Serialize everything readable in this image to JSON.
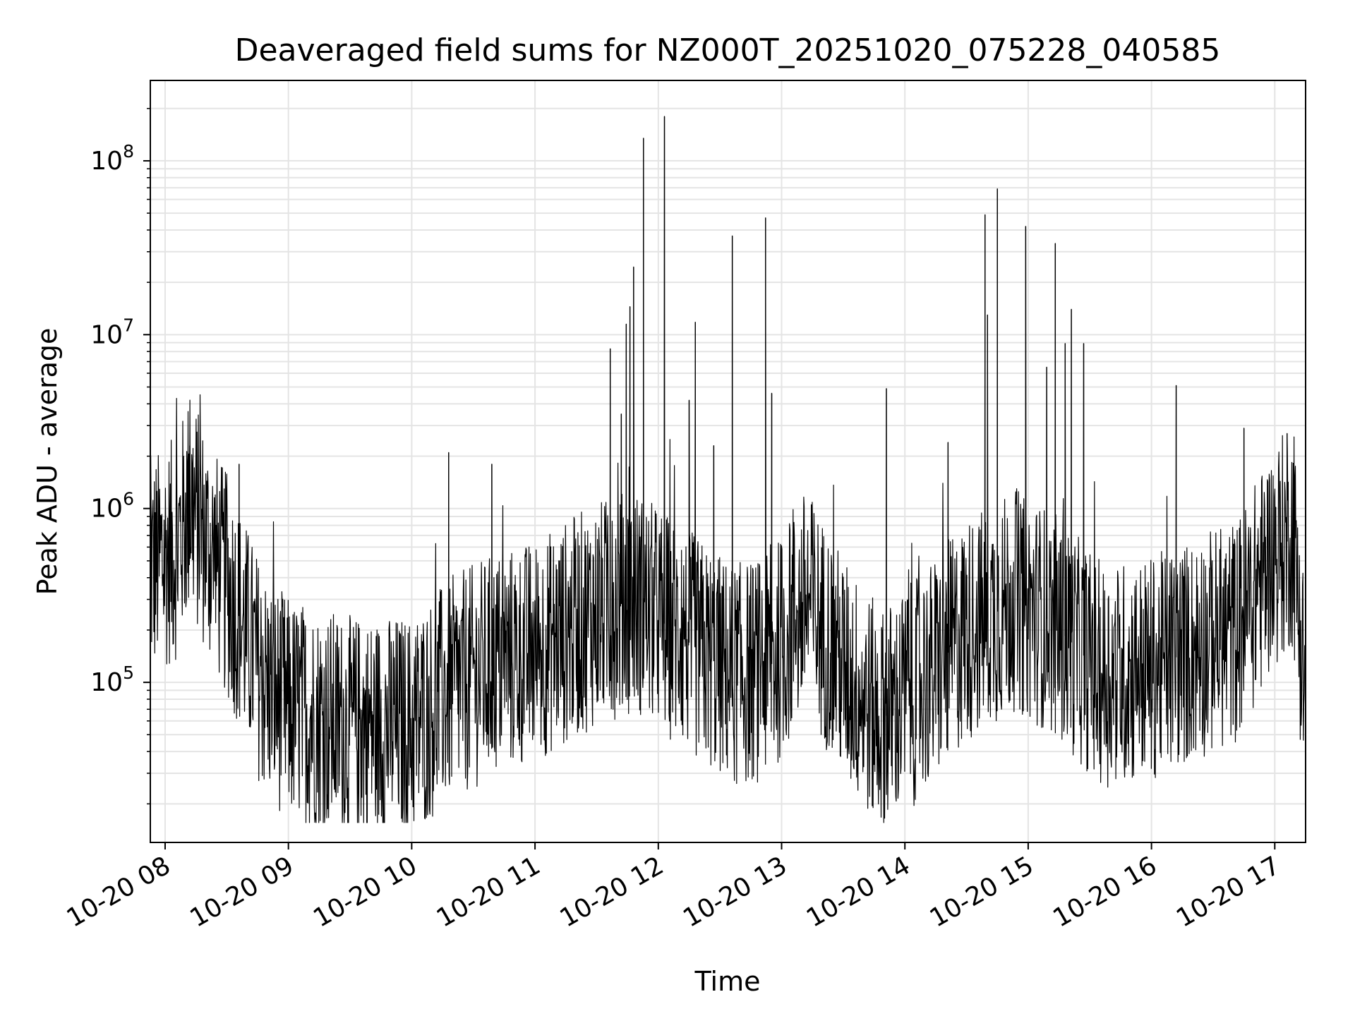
{
  "chart_data": {
    "type": "line",
    "title": "Deaveraged field sums for NZ000T_20251020_075228_040585",
    "xlabel": "Time",
    "ylabel": "Peak ADU - average",
    "y_scale": "log",
    "y_range": [
      12000,
      290000000
    ],
    "x_range_hours": [
      7.88,
      17.25
    ],
    "x_ticks": [
      {
        "hour": 8,
        "label": "10-20 08"
      },
      {
        "hour": 9,
        "label": "10-20 09"
      },
      {
        "hour": 10,
        "label": "10-20 10"
      },
      {
        "hour": 11,
        "label": "10-20 11"
      },
      {
        "hour": 12,
        "label": "10-20 12"
      },
      {
        "hour": 13,
        "label": "10-20 13"
      },
      {
        "hour": 14,
        "label": "10-20 14"
      },
      {
        "hour": 15,
        "label": "10-20 15"
      },
      {
        "hour": 16,
        "label": "10-20 16"
      },
      {
        "hour": 17,
        "label": "10-20 17"
      }
    ],
    "y_ticks": [
      {
        "value": 100000,
        "base": "10",
        "exp": "5"
      },
      {
        "value": 1000000,
        "base": "10",
        "exp": "6"
      },
      {
        "value": 10000000,
        "base": "10",
        "exp": "7"
      },
      {
        "value": 100000000,
        "base": "10",
        "exp": "8"
      }
    ],
    "grid": true,
    "series": [
      {
        "name": "Peak ADU - average",
        "color": "#000000",
        "baseline_profile": [
          [
            7.88,
            450000
          ],
          [
            8.1,
            600000
          ],
          [
            8.2,
            1100000
          ],
          [
            8.35,
            600000
          ],
          [
            8.55,
            300000
          ],
          [
            8.8,
            100000
          ],
          [
            9.0,
            70000
          ],
          [
            9.5,
            55000
          ],
          [
            10.0,
            55000
          ],
          [
            10.3,
            90000
          ],
          [
            10.7,
            130000
          ],
          [
            11.0,
            150000
          ],
          [
            11.5,
            250000
          ],
          [
            11.8,
            300000
          ],
          [
            12.2,
            180000
          ],
          [
            12.6,
            110000
          ],
          [
            12.9,
            120000
          ],
          [
            13.2,
            300000
          ],
          [
            13.5,
            120000
          ],
          [
            13.8,
            60000
          ],
          [
            14.1,
            90000
          ],
          [
            14.5,
            200000
          ],
          [
            14.9,
            300000
          ],
          [
            15.2,
            220000
          ],
          [
            15.6,
            110000
          ],
          [
            16.0,
            120000
          ],
          [
            16.3,
            150000
          ],
          [
            16.7,
            200000
          ],
          [
            17.0,
            550000
          ],
          [
            17.15,
            700000
          ],
          [
            17.25,
            80000
          ]
        ],
        "spikes": [
          [
            11.61,
            8300000
          ],
          [
            11.7,
            3500000
          ],
          [
            11.74,
            11500000
          ],
          [
            11.77,
            14500000
          ],
          [
            11.8,
            24500000
          ],
          [
            11.88,
            135000000
          ],
          [
            12.05,
            180000000
          ],
          [
            12.25,
            4200000
          ],
          [
            12.3,
            11800000
          ],
          [
            12.45,
            2300000
          ],
          [
            12.6,
            37000000
          ],
          [
            12.87,
            47000000
          ],
          [
            12.92,
            4600000
          ],
          [
            13.85,
            4900000
          ],
          [
            14.35,
            2400000
          ],
          [
            14.65,
            49000000
          ],
          [
            14.67,
            13000000
          ],
          [
            14.75,
            69000000
          ],
          [
            14.98,
            42000000
          ],
          [
            15.15,
            6500000
          ],
          [
            15.22,
            33500000
          ],
          [
            15.3,
            8900000
          ],
          [
            15.35,
            14000000
          ],
          [
            15.45,
            8900000
          ],
          [
            16.2,
            5100000
          ],
          [
            16.75,
            2900000
          ],
          [
            17.1,
            2700000
          ],
          [
            10.3,
            2100000
          ],
          [
            10.65,
            1800000
          ],
          [
            8.2,
            2300000
          ],
          [
            8.6,
            1800000
          ]
        ]
      }
    ]
  }
}
